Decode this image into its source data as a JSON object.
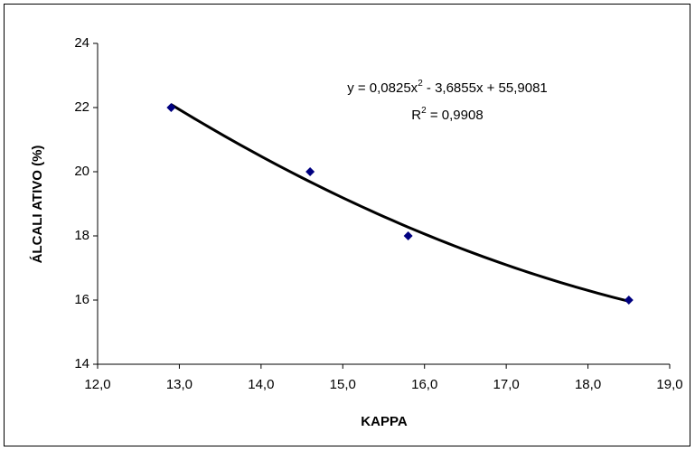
{
  "chart_data": {
    "type": "scatter",
    "x_label": "KAPPA",
    "y_label": "ÁLCALI ATIVO (%)",
    "x": [
      12.9,
      14.6,
      15.8,
      18.5
    ],
    "series": [
      {
        "color": "#000080",
        "values": [
          22,
          20,
          18,
          16
        ]
      }
    ],
    "trendline": {
      "type": "polynomial",
      "color": "#000000",
      "coefficients": [
        0.0825,
        -3.6855,
        55.9081
      ],
      "equation": [
        "y = 0,0825x",
        "2",
        " - 3,6855x + 55,9081"
      ],
      "r_squared": [
        "R",
        "2",
        " = 0,9908"
      ]
    },
    "xlim": [
      12,
      19
    ],
    "xticks": [
      {
        "value": 12,
        "label": "12,0"
      },
      {
        "value": 13,
        "label": "13,0"
      },
      {
        "value": 14,
        "label": "14,0"
      },
      {
        "value": 15,
        "label": "15,0"
      },
      {
        "value": 16,
        "label": "16,0"
      },
      {
        "value": 17,
        "label": "17,0"
      },
      {
        "value": 18,
        "label": "18,0"
      },
      {
        "value": 19,
        "label": "19,0"
      }
    ],
    "ylim": [
      14,
      24
    ],
    "yticks": [
      14,
      16,
      18,
      20,
      22,
      24
    ],
    "grid": false
  }
}
